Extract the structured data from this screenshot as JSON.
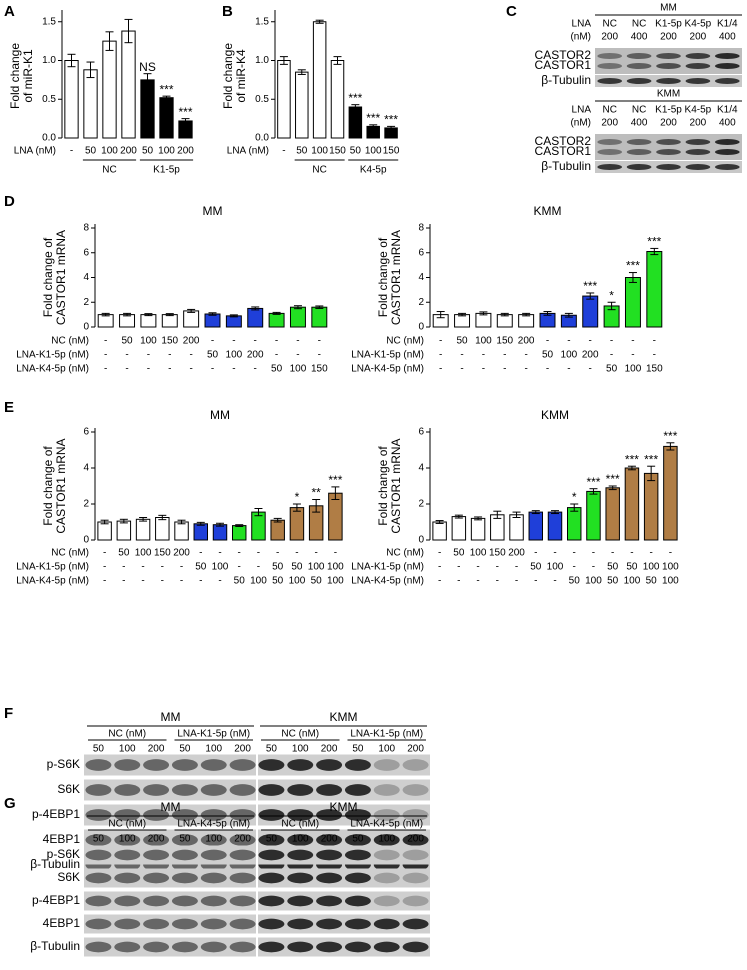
{
  "chart_data": [
    {
      "panel": "A",
      "type": "bar",
      "y_label": [
        "Fold change",
        "of miR-K1"
      ],
      "ylim": [
        0,
        1.6
      ],
      "yticks": [
        {
          "value": 0,
          "label": "0.0"
        },
        0.5,
        {
          "value": 1,
          "label": "1.0"
        },
        1.5
      ],
      "conditions": [
        {
          "label": "LNA (nM)",
          "values": [
            "-",
            "50",
            "100",
            "200",
            "50",
            "100",
            "200"
          ]
        }
      ],
      "groups": [
        null,
        "NC",
        "NC",
        "NC",
        "K1-5p",
        "K1-5p",
        "K1-5p"
      ],
      "values": [
        1.0,
        0.88,
        1.25,
        1.38,
        0.75,
        0.52,
        0.22
      ],
      "errors": [
        0.08,
        0.1,
        0.12,
        0.15,
        0.08,
        0.02,
        0.03
      ],
      "colors": [
        "#ffffff",
        "#ffffff",
        "#ffffff",
        "#ffffff",
        "#000000",
        "#000000",
        "#000000"
      ],
      "annotations": [
        null,
        null,
        null,
        null,
        "NS",
        "***",
        "***"
      ]
    },
    {
      "panel": "B",
      "type": "bar",
      "y_label": [
        "Fold change",
        "of miR-K4"
      ],
      "ylim": [
        0,
        1.6
      ],
      "yticks": [
        {
          "value": 0,
          "label": "0.0"
        },
        0.5,
        {
          "value": 1,
          "label": "1.0"
        },
        1.5
      ],
      "conditions": [
        {
          "label": "LNA (nM)",
          "values": [
            "-",
            "50",
            "100",
            "150",
            "50",
            "100",
            "150"
          ]
        }
      ],
      "groups": [
        null,
        "NC",
        "NC",
        "NC",
        "K4-5p",
        "K4-5p",
        "K4-5p"
      ],
      "values": [
        1.0,
        0.85,
        1.5,
        1.0,
        0.4,
        0.15,
        0.13
      ],
      "errors": [
        0.05,
        0.03,
        0.02,
        0.05,
        0.03,
        0.02,
        0.02
      ],
      "colors": [
        "#ffffff",
        "#ffffff",
        "#ffffff",
        "#ffffff",
        "#000000",
        "#000000",
        "#000000"
      ],
      "annotations": [
        null,
        null,
        null,
        null,
        "***",
        "***",
        "***"
      ]
    },
    {
      "panel": "D",
      "type": "bar",
      "title": "MM",
      "y_label": [
        "Fold change of",
        "CASTOR1 mRNA"
      ],
      "ylim": [
        0,
        8
      ],
      "yticks": [
        0,
        2,
        4,
        6,
        8
      ],
      "conditions": [
        {
          "label": "NC (nM)",
          "values": [
            "-",
            "50",
            "100",
            "150",
            "200",
            "-",
            "-",
            "-",
            "-",
            "-",
            "-"
          ]
        },
        {
          "label": "LNA-K1-5p (nM)",
          "values": [
            "-",
            "-",
            "-",
            "-",
            "-",
            "50",
            "100",
            "200",
            "-",
            "-",
            "-"
          ]
        },
        {
          "label": "LNA-K4-5p (nM)",
          "values": [
            "-",
            "-",
            "-",
            "-",
            "-",
            "-",
            "-",
            "-",
            "50",
            "100",
            "150"
          ]
        }
      ],
      "values": [
        1.0,
        1.0,
        1.0,
        1.0,
        1.3,
        1.05,
        0.9,
        1.5,
        1.1,
        1.6,
        1.6
      ],
      "errors": [
        0.1,
        0.1,
        0.08,
        0.08,
        0.12,
        0.1,
        0.08,
        0.12,
        0.08,
        0.12,
        0.1
      ],
      "colors": [
        "#ffffff",
        "#ffffff",
        "#ffffff",
        "#ffffff",
        "#ffffff",
        "#1f3fd9",
        "#1f3fd9",
        "#1f3fd9",
        "#22e022",
        "#22e022",
        "#22e022"
      ],
      "annotations": [
        null,
        null,
        null,
        null,
        null,
        null,
        null,
        null,
        null,
        null,
        null
      ]
    },
    {
      "panel": null,
      "type": "bar",
      "title": "KMM",
      "y_label": [
        "Fold change of",
        "CASTOR1 mRNA"
      ],
      "ylim": [
        0,
        8
      ],
      "yticks": [
        0,
        2,
        4,
        6,
        8
      ],
      "conditions": [
        {
          "label": "NC (nM)",
          "values": [
            "-",
            "50",
            "100",
            "150",
            "200",
            "-",
            "-",
            "-",
            "-",
            "-",
            "-"
          ]
        },
        {
          "label": "LNA-K1-5p (nM)",
          "values": [
            "-",
            "-",
            "-",
            "-",
            "-",
            "50",
            "100",
            "200",
            "-",
            "-",
            "-"
          ]
        },
        {
          "label": "LNA-K4-5p (nM)",
          "values": [
            "-",
            "-",
            "-",
            "-",
            "-",
            "-",
            "-",
            "-",
            "50",
            "100",
            "150"
          ]
        }
      ],
      "values": [
        1.0,
        1.0,
        1.1,
        1.0,
        1.0,
        1.1,
        0.95,
        2.5,
        1.7,
        4.0,
        6.1
      ],
      "errors": [
        0.25,
        0.1,
        0.12,
        0.1,
        0.1,
        0.15,
        0.15,
        0.25,
        0.3,
        0.4,
        0.25
      ],
      "colors": [
        "#ffffff",
        "#ffffff",
        "#ffffff",
        "#ffffff",
        "#ffffff",
        "#1f3fd9",
        "#1f3fd9",
        "#1f3fd9",
        "#22e022",
        "#22e022",
        "#22e022"
      ],
      "annotations": [
        null,
        null,
        null,
        null,
        null,
        null,
        null,
        "***",
        "*",
        "***",
        "***"
      ]
    },
    {
      "panel": "E",
      "type": "bar",
      "title": "MM",
      "y_label": [
        "Fold change of",
        "CASTOR1 mRNA"
      ],
      "ylim": [
        0,
        6
      ],
      "yticks": [
        0,
        2,
        4,
        6
      ],
      "conditions": [
        {
          "label": "NC (nM)",
          "values": [
            "-",
            "50",
            "100",
            "150",
            "200",
            "-",
            "-",
            "-",
            "-",
            "-",
            "-",
            "-",
            "-"
          ]
        },
        {
          "label": "LNA-K1-5p (nM)",
          "values": [
            "-",
            "-",
            "-",
            "-",
            "-",
            "50",
            "100",
            "-",
            "-",
            "50",
            "50",
            "100",
            "100"
          ]
        },
        {
          "label": "LNA-K4-5p (nM)",
          "values": [
            "-",
            "-",
            "-",
            "-",
            "-",
            "-",
            "-",
            "50",
            "100",
            "50",
            "100",
            "50",
            "100"
          ]
        }
      ],
      "values": [
        1.0,
        1.05,
        1.15,
        1.25,
        1.0,
        0.9,
        0.85,
        0.8,
        1.55,
        1.1,
        1.8,
        1.9,
        2.6
      ],
      "errors": [
        0.1,
        0.1,
        0.1,
        0.12,
        0.1,
        0.08,
        0.08,
        0.05,
        0.2,
        0.1,
        0.2,
        0.35,
        0.35
      ],
      "colors": [
        "#ffffff",
        "#ffffff",
        "#ffffff",
        "#ffffff",
        "#ffffff",
        "#1f3fd9",
        "#1f3fd9",
        "#22e022",
        "#22e022",
        "#b07d45",
        "#b07d45",
        "#b07d45",
        "#b07d45"
      ],
      "annotations": [
        null,
        null,
        null,
        null,
        null,
        null,
        null,
        null,
        null,
        null,
        "*",
        "**",
        "***"
      ]
    },
    {
      "panel": null,
      "type": "bar",
      "title": "KMM",
      "y_label": [
        "Fold change of",
        "CASTOR1 mRNA"
      ],
      "ylim": [
        0,
        6
      ],
      "yticks": [
        0,
        2,
        4,
        6
      ],
      "conditions": [
        {
          "label": "NC (nM)",
          "values": [
            "-",
            "50",
            "100",
            "150",
            "200",
            "-",
            "-",
            "-",
            "-",
            "-",
            "-",
            "-",
            "-"
          ]
        },
        {
          "label": "LNA-K1-5p (nM)",
          "values": [
            "-",
            "-",
            "-",
            "-",
            "-",
            "50",
            "100",
            "-",
            "-",
            "50",
            "50",
            "100",
            "100"
          ]
        },
        {
          "label": "LNA-K4-5p (nM)",
          "values": [
            "-",
            "-",
            "-",
            "-",
            "-",
            "-",
            "-",
            "50",
            "100",
            "50",
            "100",
            "50",
            "100"
          ]
        }
      ],
      "values": [
        1.0,
        1.3,
        1.2,
        1.4,
        1.4,
        1.55,
        1.55,
        1.8,
        2.7,
        2.9,
        4.0,
        3.7,
        5.2
      ],
      "errors": [
        0.08,
        0.08,
        0.08,
        0.2,
        0.15,
        0.08,
        0.08,
        0.2,
        0.15,
        0.1,
        0.1,
        0.4,
        0.2
      ],
      "colors": [
        "#ffffff",
        "#ffffff",
        "#ffffff",
        "#ffffff",
        "#ffffff",
        "#1f3fd9",
        "#1f3fd9",
        "#22e022",
        "#22e022",
        "#b07d45",
        "#b07d45",
        "#b07d45",
        "#b07d45"
      ],
      "annotations": [
        null,
        null,
        null,
        null,
        null,
        null,
        null,
        "*",
        "***",
        "***",
        "***",
        "***",
        "***"
      ]
    }
  ],
  "blots": [
    {
      "panel": "C",
      "sections": [
        {
          "title": "MM",
          "header": [
            "LNA",
            "(nM)"
          ],
          "lanes": [
            [
              "NC",
              "200"
            ],
            [
              "NC",
              "400"
            ],
            [
              "K1-5p",
              "200"
            ],
            [
              "K4-5p",
              "200"
            ],
            [
              "K1/4",
              "400"
            ]
          ],
          "bands": [
            "CASTOR2",
            "CASTOR1",
            "β-Tubulin"
          ]
        },
        {
          "title": "KMM",
          "header": [
            "LNA",
            "(nM)"
          ],
          "lanes": [
            [
              "NC",
              "200"
            ],
            [
              "NC",
              "400"
            ],
            [
              "K1-5p",
              "200"
            ],
            [
              "K4-5p",
              "200"
            ],
            [
              "K1/4",
              "400"
            ]
          ],
          "bands": [
            "CASTOR2",
            "CASTOR1",
            "β-Tubulin"
          ]
        }
      ]
    },
    {
      "panel": "F",
      "titles": [
        "MM",
        "KMM"
      ],
      "groups": [
        "NC (nM)",
        "LNA-K1-5p (nM)",
        "NC (nM)",
        "LNA-K1-5p (nM)"
      ],
      "lanes": [
        "50",
        "100",
        "200",
        "50",
        "100",
        "200",
        "50",
        "100",
        "200",
        "50",
        "100",
        "200"
      ],
      "bands": [
        "p-S6K",
        "S6K",
        "p-4EBP1",
        "4EBP1",
        "β-Tubulin"
      ]
    },
    {
      "panel": "G",
      "titles": [
        "MM",
        "KMM"
      ],
      "groups": [
        "NC (nM)",
        "LNA-K4-5p (nM)",
        "NC (nM)",
        "LNA-K4-5p (nM)"
      ],
      "lanes": [
        "50",
        "100",
        "200",
        "50",
        "100",
        "200",
        "50",
        "100",
        "200",
        "50",
        "100",
        "200"
      ],
      "bands": [
        "p-S6K",
        "S6K",
        "p-4EBP1",
        "4EBP1",
        "β-Tubulin"
      ]
    }
  ]
}
